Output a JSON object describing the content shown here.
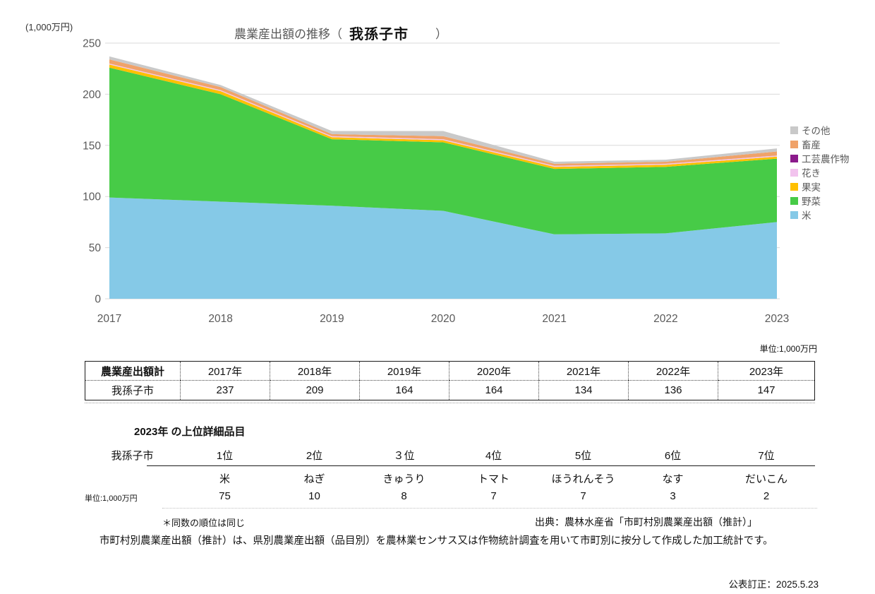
{
  "header": {
    "axis_unit": "(1,000万円)",
    "title_prefix": "農業産出額の推移（",
    "title_city": "我孫子市",
    "title_suffix": "）"
  },
  "chart_data": {
    "type": "area",
    "stacked": true,
    "title": "農業産出額の推移（我孫子市）",
    "y_axis_unit": "(1,000万円)",
    "categories": [
      "2017",
      "2018",
      "2019",
      "2020",
      "2021",
      "2022",
      "2023"
    ],
    "ylim": [
      0,
      250
    ],
    "yticks": [
      0,
      50,
      100,
      150,
      200,
      250
    ],
    "grid": true,
    "legend_position": "right",
    "stack_order_bottom_to_top": [
      "米",
      "野菜",
      "果実",
      "花き",
      "工芸農作物",
      "畜産",
      "その他"
    ],
    "series": [
      {
        "name": "米",
        "color": "#85c9e7",
        "values": [
          99,
          95,
          91,
          86,
          63,
          64,
          75
        ]
      },
      {
        "name": "野菜",
        "color": "#47cb47",
        "values": [
          127,
          105,
          65,
          67,
          64,
          65,
          62
        ]
      },
      {
        "name": "果実",
        "color": "#ffc000",
        "values": [
          3,
          3,
          2,
          2,
          2,
          2,
          2
        ]
      },
      {
        "name": "花き",
        "color": "#f2c3ee",
        "values": [
          1,
          1,
          1,
          1,
          1,
          1,
          1
        ]
      },
      {
        "name": "工芸農作物",
        "color": "#8b1a8b",
        "values": [
          0,
          0,
          0,
          0,
          0,
          0,
          0
        ]
      },
      {
        "name": "畜産",
        "color": "#f0a269",
        "values": [
          4,
          3,
          2,
          3,
          2,
          2,
          4
        ]
      },
      {
        "name": "その他",
        "color": "#c9c9c9",
        "values": [
          3,
          2,
          3,
          5,
          2,
          2,
          3
        ]
      }
    ],
    "totals": [
      237,
      209,
      164,
      164,
      134,
      136,
      147
    ]
  },
  "summary_table": {
    "unit_note": "単位:1,000万円",
    "headers": [
      "農業産出額計",
      "2017年",
      "2018年",
      "2019年",
      "2020年",
      "2021年",
      "2022年",
      "2023年"
    ],
    "rows": [
      {
        "label": "我孫子市",
        "values": [
          "237",
          "209",
          "164",
          "164",
          "134",
          "136",
          "147"
        ]
      }
    ]
  },
  "ranking": {
    "section_title": "2023年 の上位詳細品目",
    "row_label": "我孫子市",
    "unit_note": "単位:1,000万円",
    "rank_headers": [
      "1位",
      "2位",
      "３位",
      "4位",
      "5位",
      "6位",
      "7位"
    ],
    "items": [
      "米",
      "ねぎ",
      "きゅうり",
      "トマト",
      "ほうれんそう",
      "なす",
      "だいこん"
    ],
    "values": [
      "75",
      "10",
      "8",
      "7",
      "7",
      "3",
      "2"
    ]
  },
  "footnotes": {
    "tie_note": "＊同数の順位は同じ",
    "source": "出典：農林水産省「市町村別農業産出額（推計）」",
    "description": "市町村別農業産出額（推計）は、県別農業産出額（品目別）を農林業センサス又は作物統計調査を用いて市町別に按分して作成した加工統計です。",
    "revision": "公表訂正：2025.5.23"
  }
}
